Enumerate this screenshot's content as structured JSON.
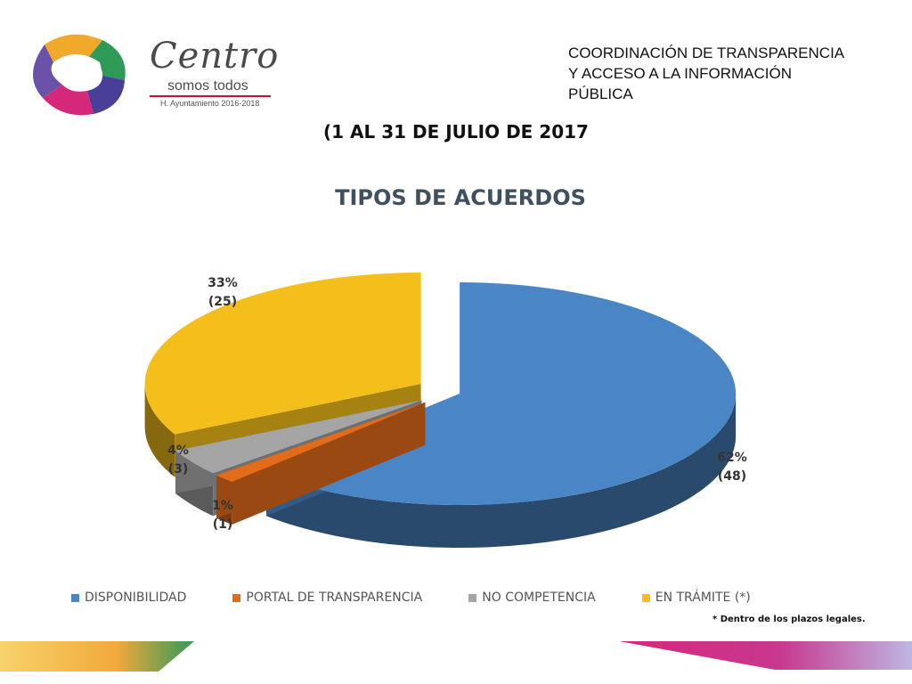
{
  "header": {
    "brand_name": "Centro",
    "brand_tagline": "somos todos",
    "brand_subtitle": "H. Ayuntamiento 2016-2018",
    "organization_lines": [
      "COORDINACIÓN DE TRANSPARENCIA",
      "Y ACCESO A LA INFORMACIÓN",
      "PÚBLICA"
    ],
    "period": "(1 AL 31 DE JULIO DE 2017"
  },
  "chart_data": {
    "type": "pie",
    "title": "TIPOS DE ACUERDOS",
    "style": "3d-exploded",
    "legend_position": "bottom",
    "slices": [
      {
        "name": "DISPONIBILIDAD",
        "value": 48,
        "percent_label": "62%",
        "count_label": "(48)",
        "color": "#4a86c5"
      },
      {
        "name": "PORTAL DE TRANSPARENCIA",
        "value": 1,
        "percent_label": "1%",
        "count_label": "(1)",
        "color": "#e36c1b"
      },
      {
        "name": "NO COMPETENCIA",
        "value": 3,
        "percent_label": "4%",
        "count_label": "(3)",
        "color": "#a5a5a5"
      },
      {
        "name": "EN TRÁMITE (*)",
        "value": 25,
        "percent_label": "33%",
        "count_label": "(25)",
        "color": "#f4bf1a"
      }
    ]
  },
  "footnote": "* Dentro de los plazos legales.",
  "colors": {
    "title": "#3f5160",
    "logo_purple": "#4a3f98",
    "logo_magenta": "#d6287a",
    "logo_orange": "#f0a92b",
    "logo_green": "#2f9a58",
    "deco_left": "#f2a93b",
    "deco_right": "#d6287a"
  }
}
